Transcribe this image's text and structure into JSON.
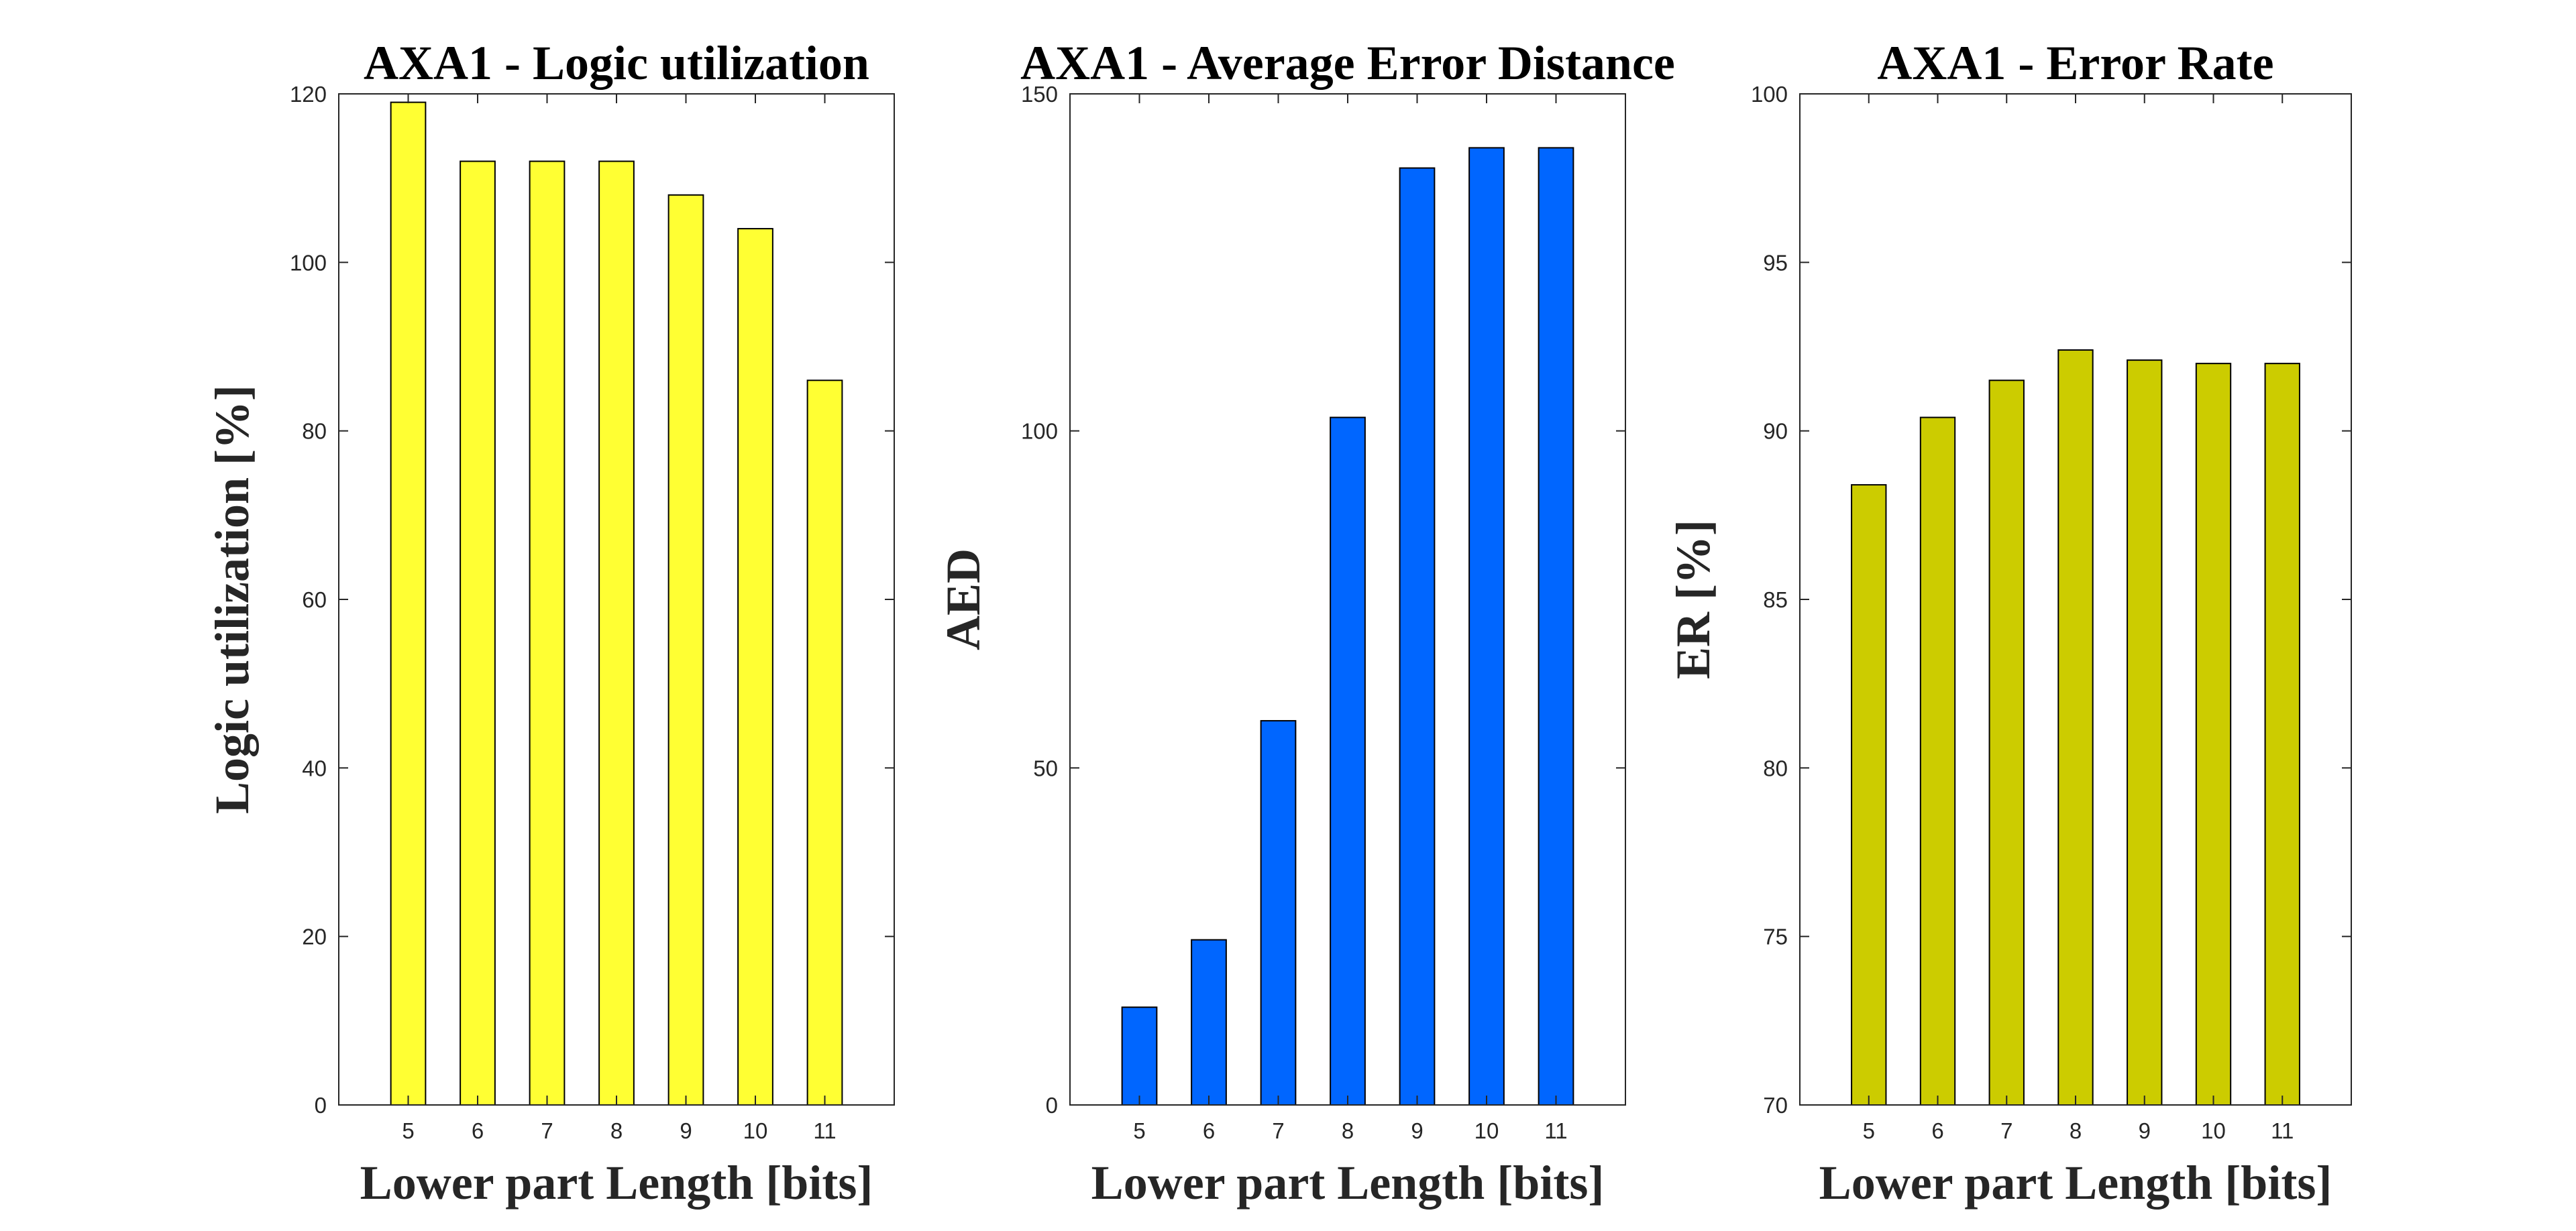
{
  "chart_data": [
    {
      "type": "bar",
      "title": "AXA1 - Logic utilization",
      "xlabel": "Lower part Length [bits]",
      "ylabel": "Logic utilization [%]",
      "categories": [
        "5",
        "6",
        "7",
        "8",
        "9",
        "10",
        "11"
      ],
      "values": [
        119,
        112,
        112,
        112,
        108,
        104,
        86
      ],
      "ylim": [
        0,
        120
      ],
      "yticks": [
        "0",
        "20",
        "40",
        "60",
        "80",
        "100",
        "120"
      ],
      "bar_color": "#ffff33",
      "grid": false
    },
    {
      "type": "bar",
      "title": "AXA1 - Average Error Distance",
      "xlabel": "Lower part Length [bits]",
      "ylabel": "AED",
      "categories": [
        "5",
        "6",
        "7",
        "8",
        "9",
        "10",
        "11"
      ],
      "values": [
        14.5,
        24.5,
        57,
        102,
        139,
        142,
        142
      ],
      "ylim": [
        0,
        150
      ],
      "yticks": [
        "0",
        "50",
        "100",
        "150"
      ],
      "bar_color": "#0066ff",
      "grid": false
    },
    {
      "type": "bar",
      "title": "AXA1 - Error Rate",
      "xlabel": "Lower part Length [bits]",
      "ylabel": "ER [%]",
      "categories": [
        "5",
        "6",
        "7",
        "8",
        "9",
        "10",
        "11"
      ],
      "values": [
        88.4,
        90.4,
        91.5,
        92.4,
        92.1,
        92.0,
        92.0
      ],
      "ylim": [
        70,
        100
      ],
      "yticks": [
        "70",
        "75",
        "80",
        "85",
        "90",
        "95",
        "100"
      ],
      "bar_color": "#cccc00",
      "grid": false
    }
  ]
}
